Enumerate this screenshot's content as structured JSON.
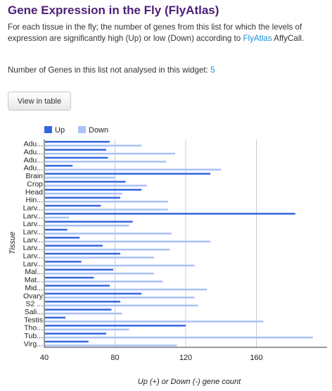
{
  "title": "Gene Expression in the Fly (FlyAtlas)",
  "description": {
    "text": "For each tissue in the fly; the number of genes from this list for which the levels of expression are significantly high (Up) or low (Down) according to ",
    "link": "FlyAtlas",
    "suffix": " AffyCall."
  },
  "not_analysed": {
    "label": "Number of Genes in this list not analysed in this widget: ",
    "value": "5"
  },
  "buttons": {
    "view_in_table": "View in table"
  },
  "colors": {
    "up": "#3366e0",
    "down": "#aac1f7",
    "title": "#4b1f77",
    "link": "#1a8fd6"
  },
  "chart_data": {
    "type": "bar",
    "orientation": "horizontal",
    "xlabel": "Up (+) or Down (-) gene count",
    "ylabel": "Tissue",
    "xlim": [
      40,
      200
    ],
    "xticks": [
      40,
      80,
      120,
      160
    ],
    "legend_position": "top-left",
    "grid": true,
    "categories": [
      "Adu...",
      "Adu...",
      "Adu...",
      "Adu...",
      "Brain",
      "Crop",
      "Head",
      "Hin...",
      "Larv...",
      "Larv...",
      "Larv...",
      "Larv...",
      "Larv...",
      "Larv...",
      "Larv...",
      "Larv...",
      "Mal...",
      "Mat...",
      "Mid...",
      "Ovary",
      "S2 ...",
      "Sali...",
      "Testis",
      "Tho...",
      "Tub...",
      "Virg..."
    ],
    "series": [
      {
        "name": "Up",
        "values": [
          77,
          75,
          76,
          56,
          134,
          86,
          95,
          83,
          72,
          182,
          90,
          53,
          60,
          73,
          83,
          61,
          79,
          68,
          77,
          95,
          83,
          78,
          52,
          120,
          75,
          65
        ]
      },
      {
        "name": "Down",
        "values": [
          95,
          114,
          109,
          140,
          80,
          98,
          84,
          110,
          110,
          54,
          88,
          112,
          134,
          111,
          102,
          125,
          102,
          107,
          132,
          125,
          127,
          84,
          164,
          88,
          192,
          115
        ]
      }
    ]
  }
}
